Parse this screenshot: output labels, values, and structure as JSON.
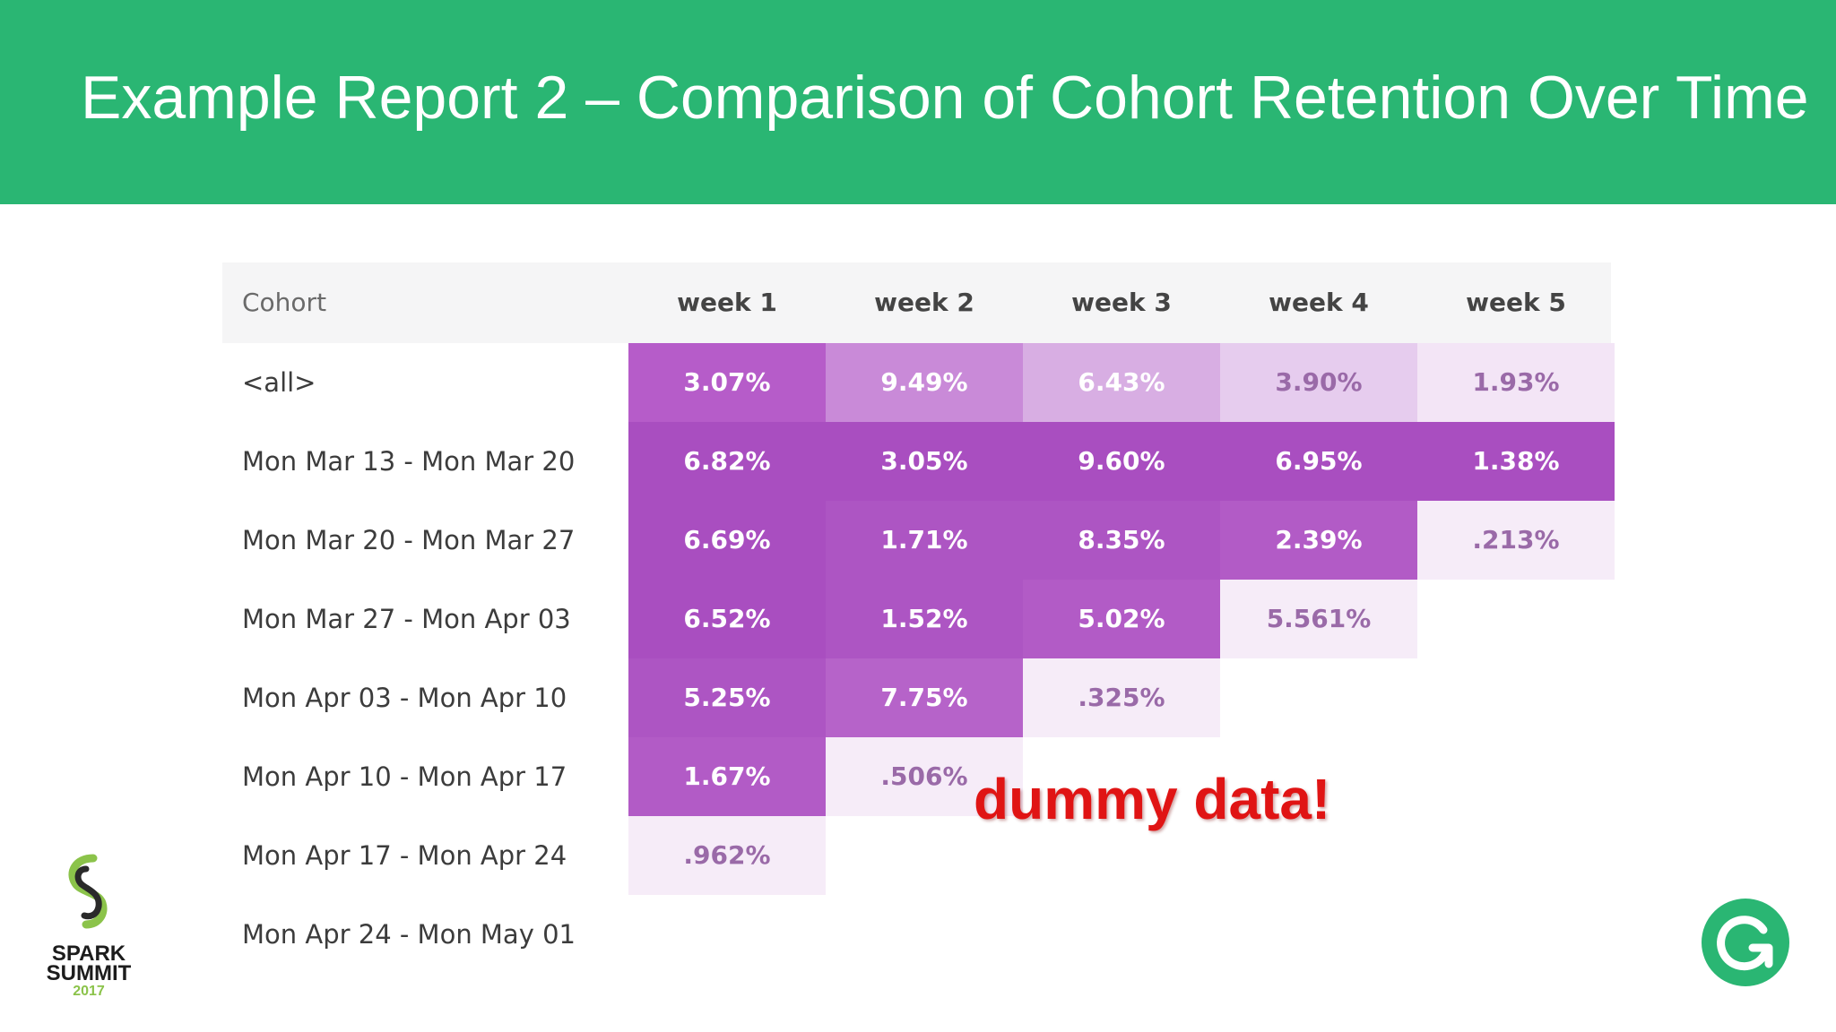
{
  "slide": {
    "title": "Example Report 2 – Comparison of Cohort Retention Over Time",
    "annotation": "dummy data!",
    "header_color": "#2ab673"
  },
  "table": {
    "header": {
      "cohort": "Cohort",
      "weeks": [
        "week 1",
        "week 2",
        "week 3",
        "week 4",
        "week 5"
      ]
    },
    "rows": [
      {
        "label": "<all>",
        "cells": [
          {
            "text": "3.07%",
            "color": "#b65cc9"
          },
          {
            "text": "9.49%",
            "color": "#c98ad8"
          },
          {
            "text": "6.43%",
            "color": "#d8aee3"
          },
          {
            "text": "3.90%",
            "color": "#e6ccee"
          },
          {
            "text": "1.93%",
            "color": "#f3e5f6"
          }
        ]
      },
      {
        "label": "Mon Mar 13 - Mon Mar 20",
        "cells": [
          {
            "text": "6.82%",
            "color": "#a94ec0"
          },
          {
            "text": "3.05%",
            "color": "#a94ec0"
          },
          {
            "text": "9.60%",
            "color": "#a94ec0"
          },
          {
            "text": "6.95%",
            "color": "#a94ec0"
          },
          {
            "text": "1.38%",
            "color": "#a94ec0"
          }
        ]
      },
      {
        "label": "Mon Mar 20 - Mon Mar 27",
        "cells": [
          {
            "text": "6.69%",
            "color": "#a94ec0"
          },
          {
            "text": "1.71%",
            "color": "#ad55c3"
          },
          {
            "text": "8.35%",
            "color": "#ad55c3"
          },
          {
            "text": "2.39%",
            "color": "#b25bc6"
          },
          {
            "text": ".213%",
            "color": "#f6ecf8"
          }
        ]
      },
      {
        "label": "Mon Mar 27 - Mon Apr 03",
        "cells": [
          {
            "text": "6.52%",
            "color": "#a94ec0"
          },
          {
            "text": "1.52%",
            "color": "#ad55c3"
          },
          {
            "text": "5.02%",
            "color": "#b25bc6"
          },
          {
            "text": "5.561%",
            "color": "#f6ecf8"
          }
        ]
      },
      {
        "label": "Mon Apr 03 - Mon Apr 10",
        "cells": [
          {
            "text": "5.25%",
            "color": "#ad55c3"
          },
          {
            "text": "7.75%",
            "color": "#b663c9"
          },
          {
            "text": ".325%",
            "color": "#f6ecf8"
          }
        ]
      },
      {
        "label": "Mon Apr 10 - Mon Apr 17",
        "cells": [
          {
            "text": "1.67%",
            "color": "#b25bc6"
          },
          {
            "text": ".506%",
            "color": "#f6ecf8"
          }
        ]
      },
      {
        "label": "Mon Apr 17 - Mon Apr 24",
        "cells": [
          {
            "text": ".962%",
            "color": "#f6ecf8"
          }
        ]
      },
      {
        "label": "Mon Apr 24 - Mon May 01",
        "cells": []
      }
    ]
  },
  "logos": {
    "left": {
      "icon": "spark-summit-logo",
      "line1": "SPARK",
      "line2": "SUMMIT",
      "year": "2017"
    },
    "right": {
      "icon": "grammarly-g-logo"
    }
  }
}
